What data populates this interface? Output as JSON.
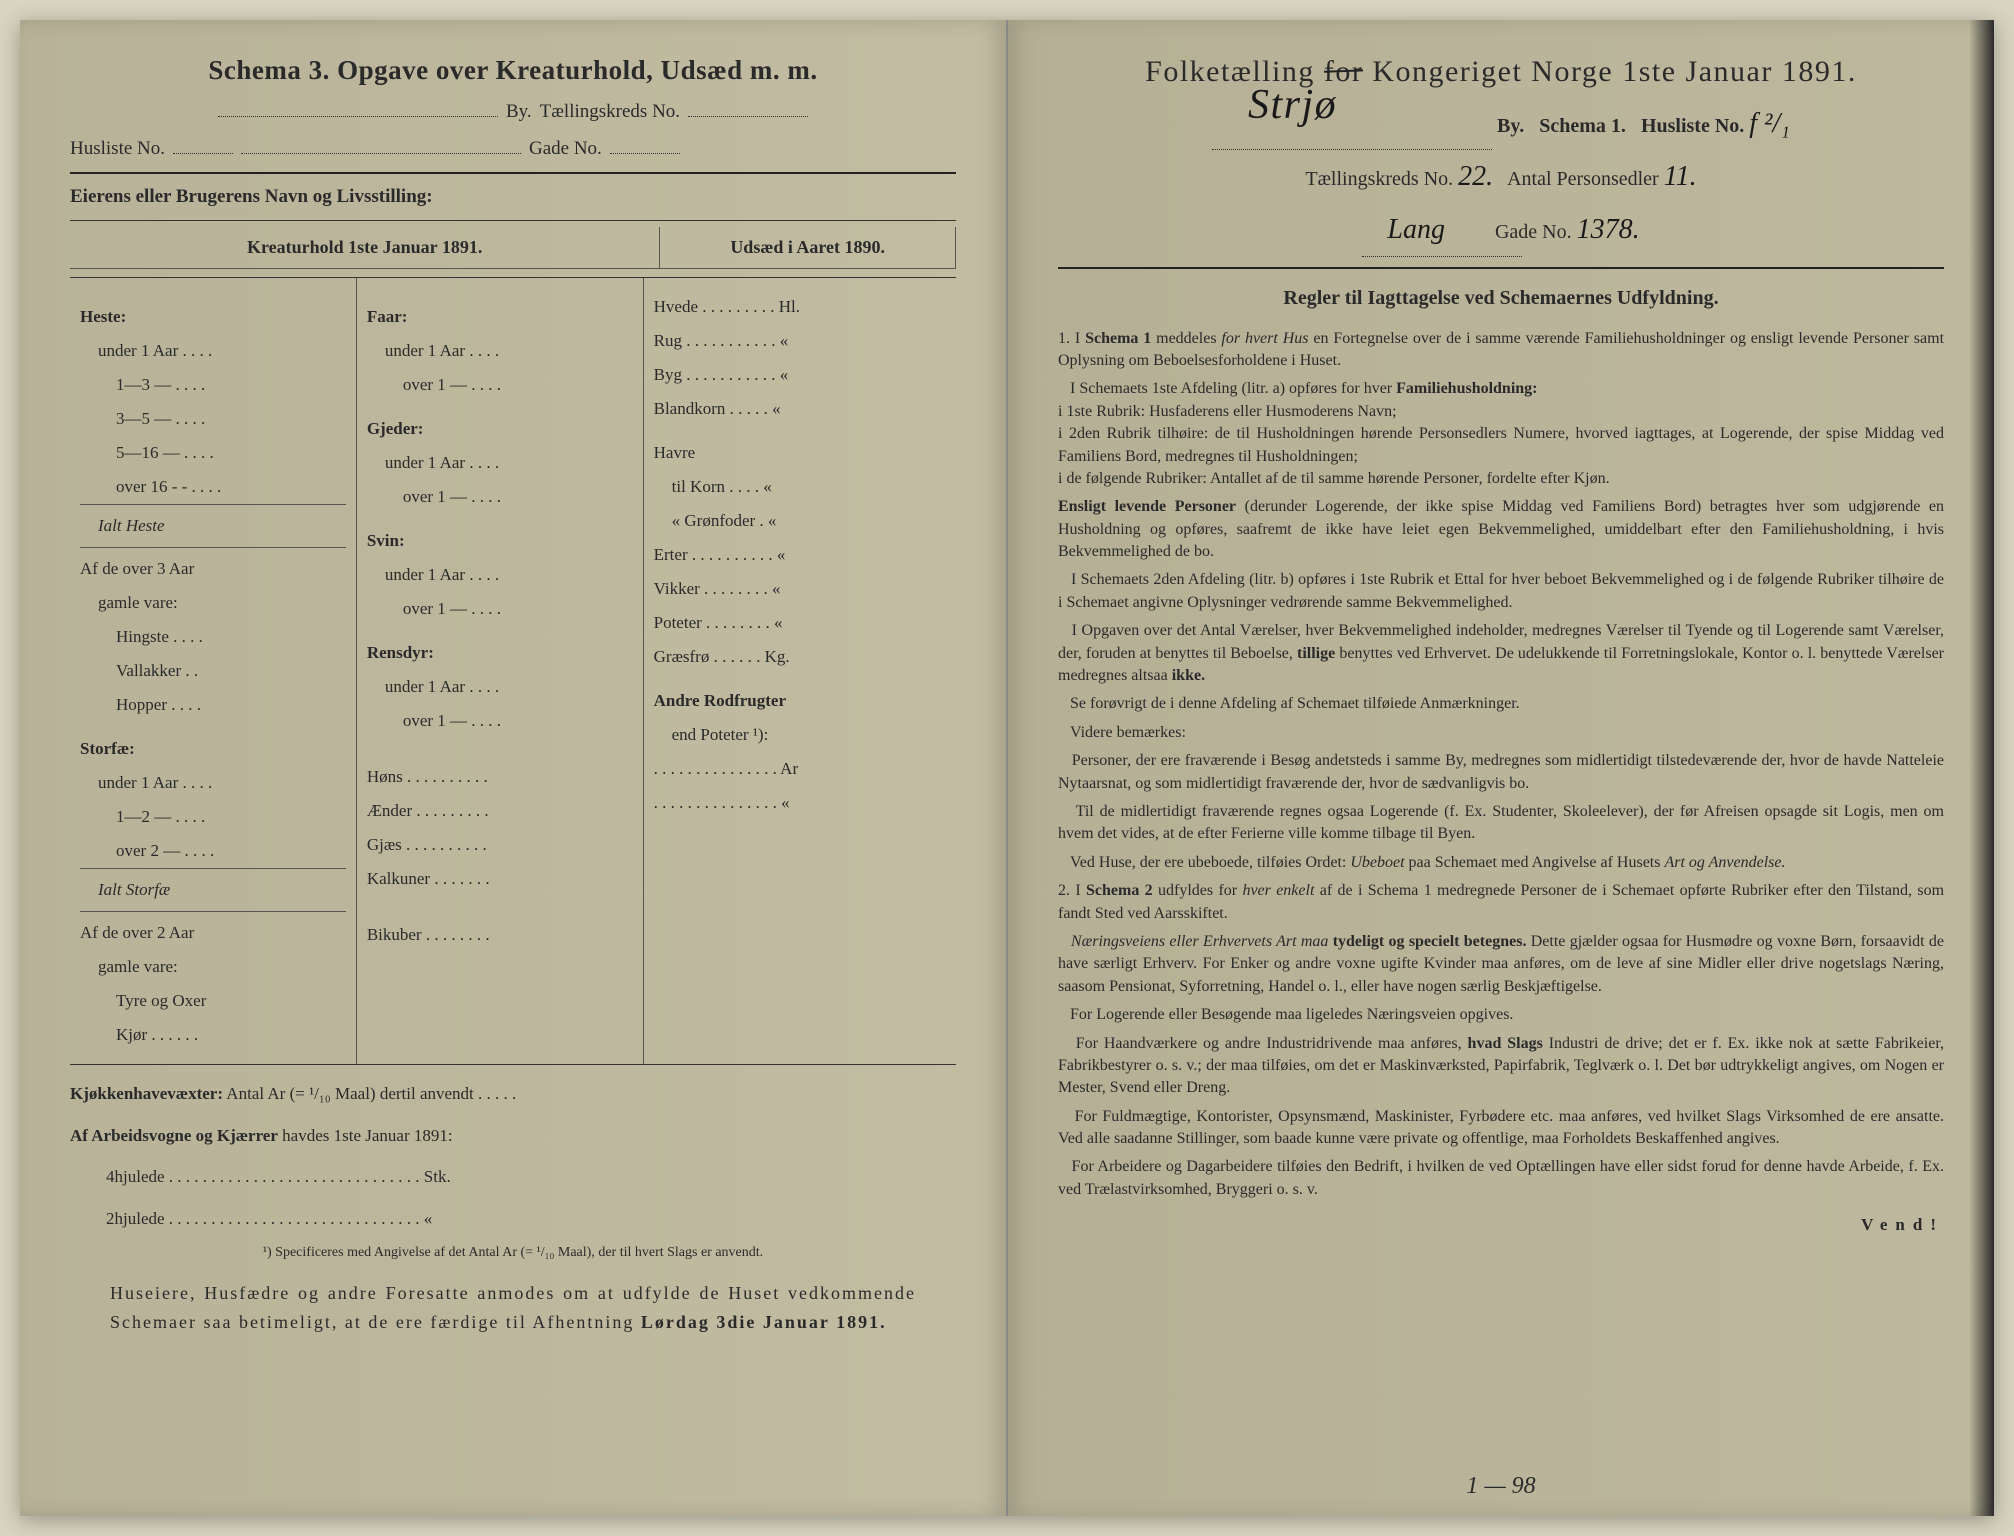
{
  "colors": {
    "paper": "#c2bda2",
    "ink": "#2a2a2a",
    "edge": "#1a1a1a"
  },
  "left": {
    "title": "Schema 3.   Opgave over Kreaturhold, Udsæd m. m.",
    "line2_label1": "By.",
    "line2_label2": "Tællingskreds No.",
    "line3_label1": "Husliste No.",
    "line3_label2": "Gade No.",
    "owner_label": "Eierens eller Brugerens Navn og Livsstilling:",
    "col1_header": "Kreaturhold 1ste Januar 1891.",
    "col3_header": "Udsæd i Aaret 1890.",
    "col1": {
      "heste": "Heste:",
      "heste_rows": [
        "under 1 Aar . . . .",
        "1—3  —  . . . .",
        "3—5  —  . . . .",
        "5—16  —  . . . .",
        "over 16 - -  . . . ."
      ],
      "ialt_heste": "Ialt Heste",
      "af_over3": "Af de over 3 Aar",
      "gamle_vare": "gamle vare:",
      "gamle_rows": [
        "Hingste . . . .",
        "Vallakker . .",
        "Hopper . . . ."
      ],
      "storfae": "Storfæ:",
      "storfae_rows": [
        "under 1 Aar . . . .",
        "1—2  —  . . . .",
        "over 2  —  . . . ."
      ],
      "ialt_storfae": "Ialt Storfæ",
      "af_over2": "Af de over 2 Aar",
      "gamle_vare2": "gamle vare:",
      "gamle2_rows": [
        "Tyre og Oxer",
        "Kjør . . . . . ."
      ]
    },
    "col2": {
      "faar": "Faar:",
      "faar_rows": [
        "under 1 Aar . . . .",
        "over 1  —  . . . ."
      ],
      "gjeder": "Gjeder:",
      "gjeder_rows": [
        "under 1 Aar . . . .",
        "over 1  —  . . . ."
      ],
      "svin": "Svin:",
      "svin_rows": [
        "under 1 Aar . . . .",
        "over 1  —  . . . ."
      ],
      "rensdyr": "Rensdyr:",
      "rensdyr_rows": [
        "under 1 Aar . . . .",
        "over 1  —  . . . ."
      ],
      "other_rows": [
        "Høns . . . . . . . . . .",
        "Ænder . . . . . . . . .",
        "Gjæs  . . . . . . . . . .",
        "Kalkuner . . . . . . .",
        "",
        "Bikuber . . . . . . . ."
      ]
    },
    "col3": {
      "rows": [
        "Hvede . . . . . . . . . Hl.",
        "Rug . . . . . . . . . . . «",
        "Byg . . . . . . . . . . . «",
        "Blandkorn . . . . . «",
        "Havre",
        "   til Korn . . . . «",
        "   « Grønfoder . «",
        "Erter . . . . . . . . . . «",
        "Vikker . . . . . . . . «",
        "Poteter . . . . . . . . «",
        "Græsfrø . . . . . . Kg.",
        "Andre Rodfrugter",
        "   end Poteter ¹):",
        ". . . . . . . . . . . . . . . Ar",
        ". . . . . . . . . . . . . . . «"
      ]
    },
    "footer1_label": "Kjøkkenhavevæxter:",
    "footer1_text": "Antal Ar (= ¹/₁₀ Maal) dertil anvendt . . . . .",
    "footer2_label": "Af Arbeidsvogne og Kjærrer",
    "footer2_text": "havdes 1ste Januar 1891:",
    "footer2_rows": [
      "4hjulede . . . . . . . . . . . . . . . . . . . . . . . . . . . . . . Stk.",
      "2hjulede . . . . . . . . . . . . . . . . . . . . . . . . . . . . . .  «"
    ],
    "footnote": "¹) Specificeres med Angivelse af det Antal Ar (= ¹/₁₀ Maal), der til hvert Slags er anvendt.",
    "closing": "Huseiere, Husfædre og andre Foresatte anmodes om at udfylde de Huset vedkommende Schemaer saa betimeligt, at de ere færdige til Afhentning Lørdag 3die Januar 1891."
  },
  "right": {
    "title_pre": "Folketælling ",
    "title_strike": "for",
    "title_post": " Kongeriget Norge 1ste Januar 1891.",
    "hand_location": "Strjø",
    "line2a": "By.",
    "line2b": "Schema 1.",
    "line2c": "Husliste No.",
    "hand_husliste": "f ²/₁",
    "line3a": "Tællingskreds No.",
    "hand_kreds": "22.",
    "line3b": "Antal Personsedler",
    "hand_sedler": "11.",
    "line4a": "",
    "hand_lang": "Lang",
    "line4b": "Gade No.",
    "hand_gade": "1378.",
    "rules_title": "Regler til Iagttagelse ved Schemaernes Udfyldning.",
    "rules_paragraphs": [
      "1. I <b>Schema 1</b> meddeles <i>for hvert Hus</i> en Fortegnelse over de i samme værende Familiehusholdninger og ensligt levende Personer samt Oplysning om Beboelsesforholdene i Huset.",
      "&nbsp;&nbsp;&nbsp;I Schemaets 1ste Afdeling (litr. a) opføres for hver <b>Familiehusholdning:</b><br>i 1ste Rubrik: Husfaderens eller Husmoderens Navn;<br>i 2den Rubrik tilhøire: de til Husholdningen hørende Personsedlers Numere, hvorved iagttages, at Logerende, der spise Middag ved Familiens Bord, medregnes til Husholdningen;<br>i de følgende Rubriker: Antallet af de til samme hørende Personer, fordelte efter Kjøn.",
      "<b>Ensligt levende Personer</b> (derunder Logerende, der ikke spise Middag ved Familiens Bord) betragtes hver som udgjørende en Husholdning og opføres, saafremt de ikke have leiet egen Bekvemmelighed, umiddelbart efter den Familiehusholdning, i hvis Bekvemmelighed de bo.",
      "&nbsp;&nbsp;&nbsp;I Schemaets 2den Afdeling (litr. b) opføres i 1ste Rubrik et Ettal for hver beboet Bekvemmelighed og i de følgende Rubriker tilhøire de i Schemaet angivne Oplysninger vedrørende samme Bekvemmelighed.",
      "&nbsp;&nbsp;&nbsp;I Opgaven over det Antal Værelser, hver Bekvemmelighed indeholder, medregnes Værelser til Tyende og til Logerende samt Værelser, der, foruden at benyttes til Beboelse, <b>tillige</b> benyttes ved Erhvervet. De udelukkende til Forretningslokale, Kontor o. l. benyttede Værelser medregnes altsaa <b>ikke.</b>",
      "&nbsp;&nbsp;&nbsp;Se forøvrigt de i denne Afdeling af Schemaet tilføiede Anmærkninger.",
      "&nbsp;&nbsp;&nbsp;Videre bemærkes:",
      "&nbsp;&nbsp;&nbsp;Personer, der ere fraværende i Besøg andetsteds i samme By, medregnes som midlertidigt tilstedeværende der, hvor de havde Natteleie Nytaarsnat, og som midlertidigt fraværende der, hvor de sædvanligvis bo.",
      "&nbsp;&nbsp;&nbsp;Til de midlertidigt fraværende regnes ogsaa Logerende (f. Ex. Studenter, Skoleelever), der før Afreisen opsagde sit Logis, men om hvem det vides, at de efter Ferierne ville komme tilbage til Byen.",
      "&nbsp;&nbsp;&nbsp;Ved Huse, der ere ubeboede, tilføies Ordet: <i>Ubeboet</i> paa Schemaet med Angivelse af Husets <i>Art og Anvendelse.</i>",
      "2. I <b>Schema 2</b> udfyldes for <i>hver enkelt</i> af de i Schema 1 medregnede Personer de i Schemaet opførte Rubriker efter den Tilstand, som fandt Sted ved Aarsskiftet.",
      "&nbsp;&nbsp;&nbsp;<i>Næringsveiens eller Erhvervets Art maa</i> <b>tydeligt og specielt betegnes.</b> Dette gjælder ogsaa for Husmødre og voxne Børn, forsaavidt de have særligt Erhverv. For Enker og andre voxne ugifte Kvinder maa anføres, om de leve af sine Midler eller drive nogetslags Næring, saasom Pensionat, Syforretning, Handel o. l., eller have nogen særlig Beskjæftigelse.",
      "&nbsp;&nbsp;&nbsp;For Logerende eller Besøgende maa ligeledes Næringsveien opgives.",
      "&nbsp;&nbsp;&nbsp;For Haandværkere og andre Industridrivende maa anføres, <b>hvad Slags</b> Industri de drive; det er f. Ex. ikke nok at sætte Fabrikeier, Fabrikbestyrer o. s. v.; der maa tilføies, om det er Maskinværksted, Papirfabrik, Teglværk o. l. Det bør udtrykkeligt angives, om Nogen er Mester, Svend eller Dreng.",
      "&nbsp;&nbsp;&nbsp;For Fuldmægtige, Kontorister, Opsynsmænd, Maskinister, Fyrbødere etc. maa anføres, ved hvilket Slags Virksomhed de ere ansatte. Ved alle saadanne Stillinger, som baade kunne være private og offentlige, maa Forholdets Beskaffenhed angives.",
      "&nbsp;&nbsp;&nbsp;For Arbeidere og Dagarbeidere tilføies den Bedrift, i hvilken de ved Optællingen have eller sidst forud for denne havde Arbeide, f. Ex. ved Trælastvirksomhed, Bryggeri o. s. v."
    ],
    "vend": "Vend!",
    "page_num": "1 — 98"
  }
}
